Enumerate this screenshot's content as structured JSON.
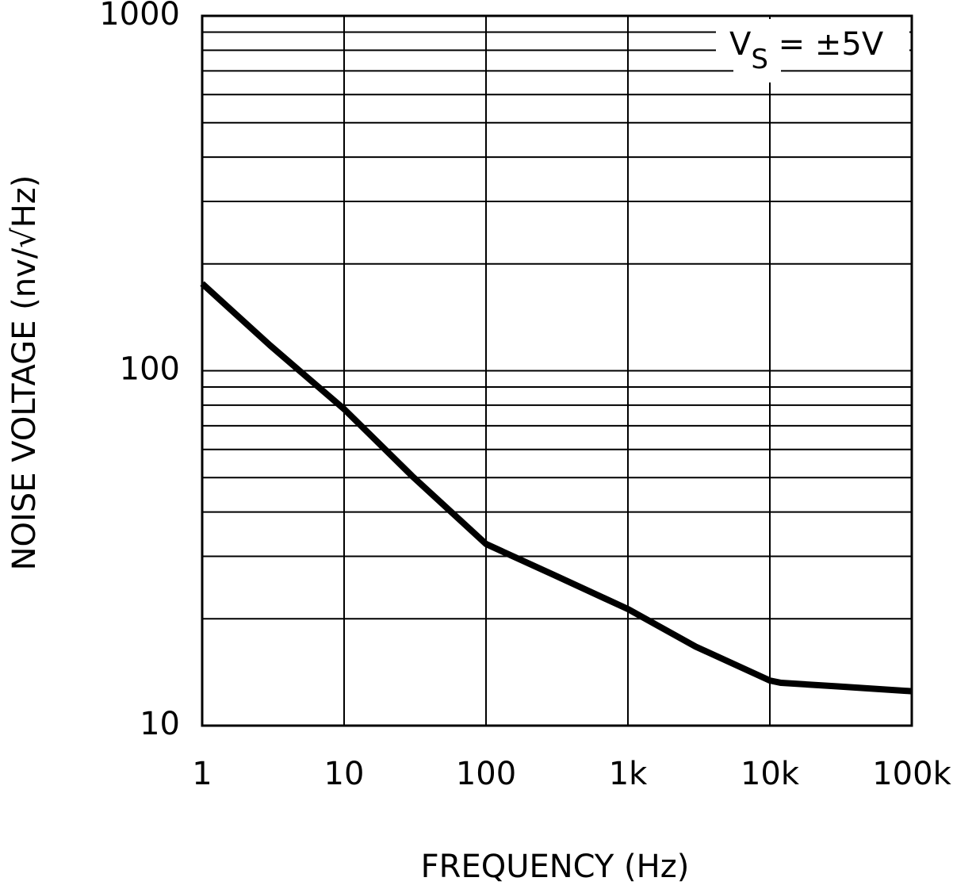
{
  "chart_data": {
    "type": "line",
    "xlabel": "FREQUENCY (Hz)",
    "ylabel": "NOISE VOLTAGE (nv/√Hz)",
    "annotation": {
      "main": "V",
      "subscript": "S",
      "rest": " = ±5V"
    },
    "x": [
      1,
      3,
      10,
      30,
      100,
      300,
      1000,
      3000,
      10000,
      12000,
      30000,
      100000
    ],
    "series": [
      {
        "color": "#000000",
        "values": [
          176,
          118,
          78,
          50.6,
          32.5,
          26.6,
          21.3,
          16.7,
          13.4,
          13.2,
          12.9,
          12.5
        ]
      }
    ],
    "xscale": "log",
    "yscale": "log",
    "grid": true,
    "xlim": [
      1,
      100000
    ],
    "ylim": [
      10,
      1000
    ],
    "xticks": [
      1,
      10,
      100,
      {
        "value": 1000,
        "label": "1k"
      },
      {
        "value": 10000,
        "label": "10k"
      },
      {
        "value": 100000,
        "label": "100k"
      }
    ],
    "yticks": [
      10,
      100,
      1000
    ]
  }
}
